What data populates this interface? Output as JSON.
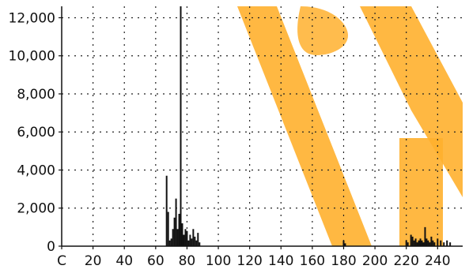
{
  "chart_data": {
    "type": "bar",
    "title": "",
    "xlabel": "",
    "ylabel": "",
    "xlim": [
      0,
      256
    ],
    "ylim": [
      0,
      12600
    ],
    "grid": true,
    "x_ticks": [
      0,
      20,
      40,
      60,
      80,
      100,
      120,
      140,
      160,
      180,
      200,
      220,
      240
    ],
    "x_tick_labels": [
      "C",
      "20",
      "40",
      "60",
      "80",
      "100",
      "120",
      "140",
      "160",
      "180",
      "200",
      "220",
      "240"
    ],
    "y_ticks": [
      0,
      2000,
      4000,
      6000,
      8000,
      10000,
      12000
    ],
    "y_tick_labels": [
      "0",
      "2,000",
      "4,000",
      "6,000",
      "8,000",
      "10,000",
      "12,000"
    ],
    "bar_color": "#111111",
    "series": [
      {
        "x": [
          67,
          68,
          69,
          70,
          71,
          72,
          73,
          74,
          75,
          76,
          77,
          78,
          79,
          80,
          81,
          82,
          83,
          84,
          85,
          86,
          87,
          88,
          180,
          181,
          220,
          221,
          223,
          224,
          225,
          226,
          227,
          228,
          229,
          230,
          231,
          232,
          233,
          234,
          235,
          236,
          237,
          238,
          240,
          242,
          244,
          246,
          248
        ],
        "values": [
          3700,
          1800,
          300,
          400,
          900,
          1500,
          2500,
          900,
          1700,
          12600,
          1200,
          600,
          900,
          800,
          300,
          600,
          400,
          900,
          500,
          300,
          700,
          200,
          300,
          150,
          300,
          200,
          600,
          500,
          300,
          400,
          200,
          300,
          400,
          300,
          200,
          1000,
          400,
          300,
          200,
          500,
          300,
          200,
          400,
          300,
          200,
          300,
          200
        ]
      }
    ]
  },
  "colors": {
    "grid": "#222222",
    "axis": "#111111",
    "watermark": "#ffb02e"
  }
}
